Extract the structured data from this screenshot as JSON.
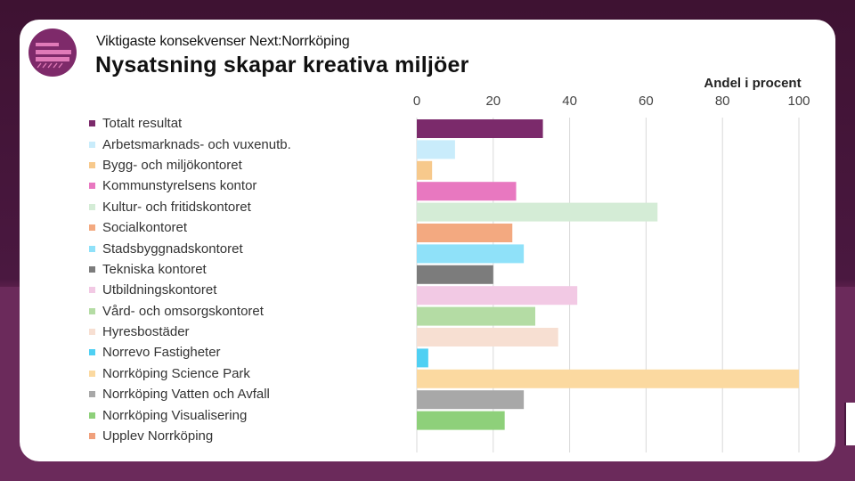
{
  "header": {
    "subtitle": "Viktigaste konsekvenser Next:Norrköping",
    "title": "Nysatsning skapar kreativa miljöer"
  },
  "chart_data": {
    "type": "bar",
    "orientation": "horizontal",
    "axis_label": "Andel i procent",
    "xlim": [
      0,
      100
    ],
    "ticks": [
      0,
      20,
      40,
      60,
      80,
      100
    ],
    "grid": true,
    "legend_position": "left",
    "categories": [
      "Totalt resultat",
      "Arbetsmarknads- och vuxenutb.",
      "Bygg- och miljökontoret",
      "Kommunstyrelsens kontor",
      "Kultur- och fritidskontoret",
      "Socialkontoret",
      "Stadsbyggnadskontoret",
      "Tekniska kontoret",
      "Utbildningskontoret",
      "Vård- och omsorgskontoret",
      "Hyresbostäder",
      "Norrevo Fastigheter",
      "Norrköping Science Park",
      "Norrköping Vatten och Avfall",
      "Norrköping Visualisering",
      "Upplev Norrköping"
    ],
    "values": [
      33,
      10,
      4,
      26,
      63,
      25,
      28,
      20,
      42,
      31,
      37,
      3,
      100,
      28,
      23,
      0
    ],
    "colors": [
      "#7b2a6b",
      "#c9ecfb",
      "#f7c98c",
      "#e878c0",
      "#d4ecd6",
      "#f3a980",
      "#8fe1f9",
      "#7c7c7c",
      "#f2c9e4",
      "#b4dca4",
      "#f7dfd2",
      "#4fd0f3",
      "#fbd9a0",
      "#a8a8a8",
      "#8ed07a",
      "#f0a07c"
    ]
  }
}
